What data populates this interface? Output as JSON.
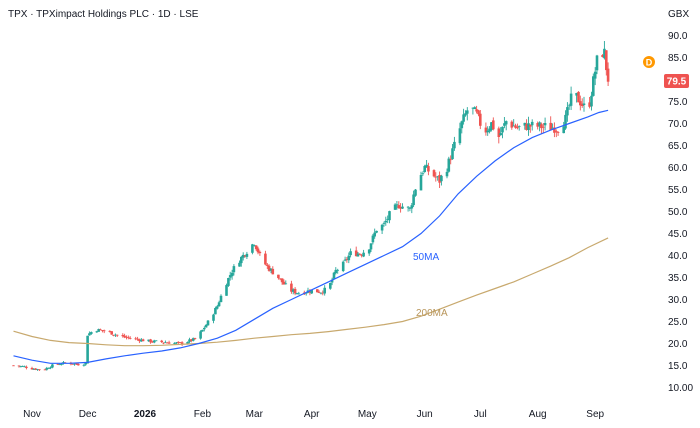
{
  "chart_data": {
    "type": "candlestick",
    "title": "TPX · TPXimpact Holdings PLC · 1D · LSE",
    "currency_unit": "GBX",
    "y_ticks": [
      "90.0",
      "85.0",
      "80.0",
      "75.0",
      "70.0",
      "65.0",
      "60.0",
      "55.0",
      "50.0",
      "45.0",
      "40.0",
      "35.0",
      "30.0",
      "25.0",
      "20.0",
      "15.0",
      "10.00"
    ],
    "ylim": [
      8,
      93
    ],
    "x_ticks": [
      {
        "label": "Nov",
        "day": 0,
        "bold": false
      },
      {
        "label": "Dec",
        "day": 30,
        "bold": false
      },
      {
        "label": "2026",
        "day": 61,
        "bold": true
      },
      {
        "label": "Feb",
        "day": 92,
        "bold": false
      },
      {
        "label": "Mar",
        "day": 120,
        "bold": false
      },
      {
        "label": "Apr",
        "day": 151,
        "bold": false
      },
      {
        "label": "May",
        "day": 181,
        "bold": false
      },
      {
        "label": "Jun",
        "day": 212,
        "bold": false
      },
      {
        "label": "Jul",
        "day": 242,
        "bold": false
      },
      {
        "label": "Aug",
        "day": 273,
        "bold": false
      },
      {
        "label": "Sep",
        "day": 304,
        "bold": false
      }
    ],
    "last_price": "79.5",
    "dividend_marker": "D",
    "grid": false,
    "colors": {
      "up": "#26a69a",
      "down": "#ef5350",
      "ma50": "#2962ff",
      "ma200": "#c8a96e",
      "price_tag": "#ef5350",
      "dividend": "#ff9800"
    },
    "price_path": [
      [
        -10,
        15.0
      ],
      [
        -4,
        14.7
      ],
      [
        0,
        14.3
      ],
      [
        6,
        14.0
      ],
      [
        12,
        15.2
      ],
      [
        18,
        15.6
      ],
      [
        26,
        15.2
      ],
      [
        29,
        15.5
      ],
      [
        30,
        22.0
      ],
      [
        34,
        23.2
      ],
      [
        40,
        22.8
      ],
      [
        48,
        21.6
      ],
      [
        56,
        21.0
      ],
      [
        64,
        20.5
      ],
      [
        72,
        20.3
      ],
      [
        80,
        20.0
      ],
      [
        88,
        21.0
      ],
      [
        92,
        23.0
      ],
      [
        96,
        25.5
      ],
      [
        100,
        28.5
      ],
      [
        104,
        33.0
      ],
      [
        108,
        36.5
      ],
      [
        112,
        39.0
      ],
      [
        116,
        41.0
      ],
      [
        120,
        43.0
      ],
      [
        124,
        39.0
      ],
      [
        128,
        37.0
      ],
      [
        132,
        35.5
      ],
      [
        136,
        33.5
      ],
      [
        140,
        32.0
      ],
      [
        144,
        31.5
      ],
      [
        150,
        32.0
      ],
      [
        156,
        31.8
      ],
      [
        160,
        32.5
      ],
      [
        164,
        36.5
      ],
      [
        168,
        38.0
      ],
      [
        172,
        40.5
      ],
      [
        178,
        40.5
      ],
      [
        182,
        42.0
      ],
      [
        186,
        46.0
      ],
      [
        190,
        47.0
      ],
      [
        194,
        50.0
      ],
      [
        198,
        51.5
      ],
      [
        204,
        50.5
      ],
      [
        208,
        57.0
      ],
      [
        212,
        60.0
      ],
      [
        216,
        58.5
      ],
      [
        220,
        57.0
      ],
      [
        224,
        60.0
      ],
      [
        228,
        65.0
      ],
      [
        232,
        70.0
      ],
      [
        236,
        74.0
      ],
      [
        240,
        72.0
      ],
      [
        244,
        68.0
      ],
      [
        248,
        70.0
      ],
      [
        252,
        67.0
      ],
      [
        256,
        70.5
      ],
      [
        262,
        69.0
      ],
      [
        268,
        69.5
      ],
      [
        276,
        69.3
      ],
      [
        284,
        69.0
      ],
      [
        288,
        71.0
      ],
      [
        292,
        77.0
      ],
      [
        296,
        75.0
      ],
      [
        300,
        72.5
      ],
      [
        304,
        82.0
      ],
      [
        306,
        86.5
      ],
      [
        309,
        86.0
      ],
      [
        311,
        79.5
      ]
    ],
    "ma50": [
      [
        -10,
        17.2
      ],
      [
        0,
        16.2
      ],
      [
        10,
        15.5
      ],
      [
        20,
        15.5
      ],
      [
        30,
        15.7
      ],
      [
        40,
        16.5
      ],
      [
        50,
        17.2
      ],
      [
        60,
        17.8
      ],
      [
        70,
        18.3
      ],
      [
        80,
        19.0
      ],
      [
        90,
        20.0
      ],
      [
        100,
        21.2
      ],
      [
        110,
        23.0
      ],
      [
        120,
        25.5
      ],
      [
        130,
        28.0
      ],
      [
        140,
        30.0
      ],
      [
        150,
        32.0
      ],
      [
        160,
        34.0
      ],
      [
        170,
        36.0
      ],
      [
        180,
        38.0
      ],
      [
        190,
        40.0
      ],
      [
        200,
        42.0
      ],
      [
        210,
        45.0
      ],
      [
        220,
        49.0
      ],
      [
        230,
        54.0
      ],
      [
        240,
        58.0
      ],
      [
        250,
        61.5
      ],
      [
        260,
        64.5
      ],
      [
        270,
        66.8
      ],
      [
        280,
        68.5
      ],
      [
        290,
        70.0
      ],
      [
        300,
        71.5
      ],
      [
        306,
        72.5
      ],
      [
        311,
        73.0
      ]
    ],
    "ma200": [
      [
        -10,
        22.8
      ],
      [
        0,
        21.6
      ],
      [
        10,
        20.7
      ],
      [
        20,
        20.2
      ],
      [
        30,
        20.0
      ],
      [
        40,
        19.7
      ],
      [
        50,
        19.5
      ],
      [
        60,
        19.5
      ],
      [
        70,
        19.6
      ],
      [
        80,
        19.8
      ],
      [
        90,
        20.0
      ],
      [
        100,
        20.3
      ],
      [
        110,
        20.7
      ],
      [
        120,
        21.2
      ],
      [
        130,
        21.6
      ],
      [
        140,
        22.0
      ],
      [
        150,
        22.3
      ],
      [
        160,
        22.7
      ],
      [
        170,
        23.2
      ],
      [
        180,
        23.7
      ],
      [
        190,
        24.3
      ],
      [
        200,
        25.0
      ],
      [
        210,
        26.2
      ],
      [
        220,
        27.8
      ],
      [
        230,
        29.4
      ],
      [
        240,
        31.0
      ],
      [
        250,
        32.5
      ],
      [
        260,
        34.0
      ],
      [
        270,
        35.8
      ],
      [
        280,
        37.6
      ],
      [
        290,
        39.5
      ],
      [
        300,
        41.8
      ],
      [
        311,
        44.0
      ]
    ],
    "series": [
      {
        "name": "50MA",
        "color": "#2962ff"
      },
      {
        "name": "200MA",
        "color": "#c8a96e"
      }
    ]
  }
}
